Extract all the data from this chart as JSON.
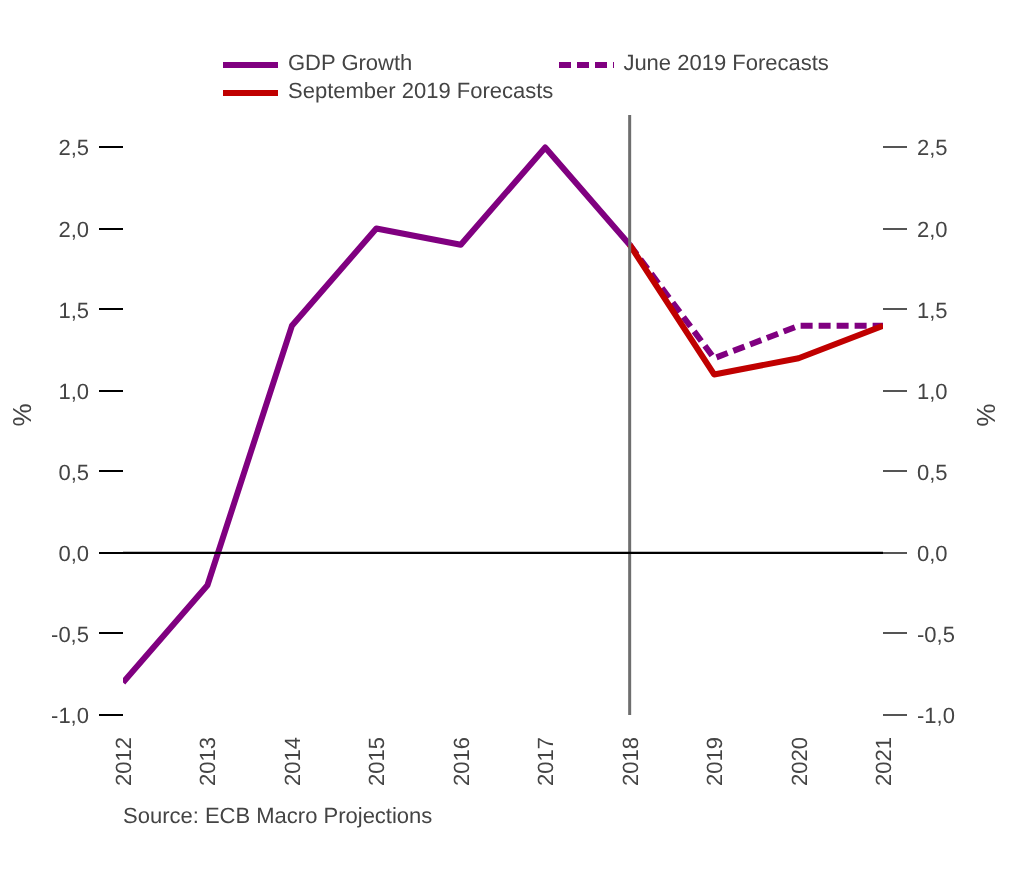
{
  "chart_data": {
    "type": "line",
    "categories": [
      "2012",
      "2013",
      "2014",
      "2015",
      "2016",
      "2017",
      "2018",
      "2019",
      "2020",
      "2021"
    ],
    "series": [
      {
        "name": "GDP Growth",
        "color": "#800080",
        "values": [
          -0.8,
          -0.2,
          1.4,
          2.0,
          1.9,
          2.5,
          1.9,
          null,
          null,
          null
        ]
      },
      {
        "name": "June 2019 Forecasts",
        "color": "#800080",
        "line_style": "dashed",
        "values": [
          null,
          null,
          null,
          null,
          null,
          null,
          1.9,
          1.2,
          1.4,
          1.4
        ]
      },
      {
        "name": "September 2019 Forecasts",
        "color": "#c00000",
        "values": [
          null,
          null,
          null,
          null,
          null,
          null,
          1.9,
          1.1,
          1.2,
          1.4
        ]
      }
    ],
    "ylabel": "%",
    "y2label": "%",
    "ylim": [
      -1.0,
      2.7
    ],
    "yticks": [
      {
        "value": -1.0,
        "label": "-1,0"
      },
      {
        "value": -0.5,
        "label": "-0,5"
      },
      {
        "value": 0.0,
        "label": "0,0"
      },
      {
        "value": 0.5,
        "label": "0,5"
      },
      {
        "value": 1.0,
        "label": "1,0"
      },
      {
        "value": 1.5,
        "label": "1,5"
      },
      {
        "value": 2.0,
        "label": "2,0"
      },
      {
        "value": 2.5,
        "label": "2,5"
      }
    ],
    "y2lim": [
      -1.0,
      2.7
    ],
    "y2ticks": [
      {
        "value": -1.0,
        "label": "-1,0"
      },
      {
        "value": -0.5,
        "label": "-0,5"
      },
      {
        "value": 0.0,
        "label": "0,0"
      },
      {
        "value": 0.5,
        "label": "0,5"
      },
      {
        "value": 1.0,
        "label": "1,0"
      },
      {
        "value": 1.5,
        "label": "1,5"
      },
      {
        "value": 2.0,
        "label": "2,0"
      },
      {
        "value": 2.5,
        "label": "2,5"
      }
    ],
    "ref_lines": [
      {
        "axis": "x",
        "value": "2018",
        "color": "#6e6e6e"
      },
      {
        "axis": "y",
        "value": 0.0,
        "color": "#000000"
      }
    ],
    "grid": false,
    "legend": "top",
    "line_style": "solid",
    "marker": "none",
    "annotations": [
      "Source: ECB Macro Projections"
    ]
  }
}
